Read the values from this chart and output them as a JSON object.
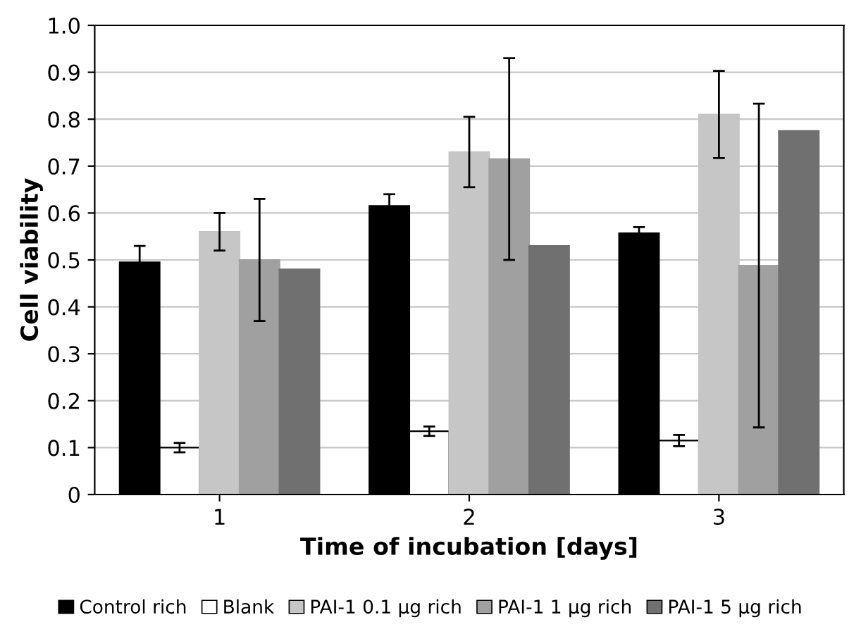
{
  "chart_data": {
    "type": "bar",
    "xlabel": "Time of incubation [days]",
    "ylabel": "Cell viability",
    "categories": [
      "1",
      "2",
      "3"
    ],
    "series": [
      {
        "name": "Control rich",
        "color": "#000000",
        "values": [
          0.495,
          0.615,
          0.557
        ],
        "errors": [
          0.035,
          0.025,
          0.013
        ]
      },
      {
        "name": "Blank",
        "color": "#ffffff",
        "values": [
          0.1,
          0.135,
          0.115
        ],
        "errors": [
          0.01,
          0.01,
          0.012
        ]
      },
      {
        "name": "PAI-1 0.1 μg rich",
        "color": "#c6c6c6",
        "values": [
          0.56,
          0.73,
          0.81
        ],
        "errors": [
          0.04,
          0.075,
          0.093
        ]
      },
      {
        "name": "PAI-1 1 μg rich",
        "color": "#a0a0a0",
        "values": [
          0.5,
          0.715,
          0.488
        ],
        "errors": [
          0.13,
          0.215,
          0.345
        ]
      },
      {
        "name": "PAI-1 5 μg rich",
        "color": "#707070",
        "values": [
          0.48,
          0.53,
          0.775
        ]
      }
    ],
    "ylim": [
      0,
      1.0
    ],
    "yticks": [
      0,
      0.1,
      0.2,
      0.3,
      0.4,
      0.5,
      0.6,
      0.7,
      0.8,
      0.9,
      {
        "value": 1.0,
        "label": "1.0"
      }
    ],
    "grid": "y",
    "legend": "bottom"
  }
}
